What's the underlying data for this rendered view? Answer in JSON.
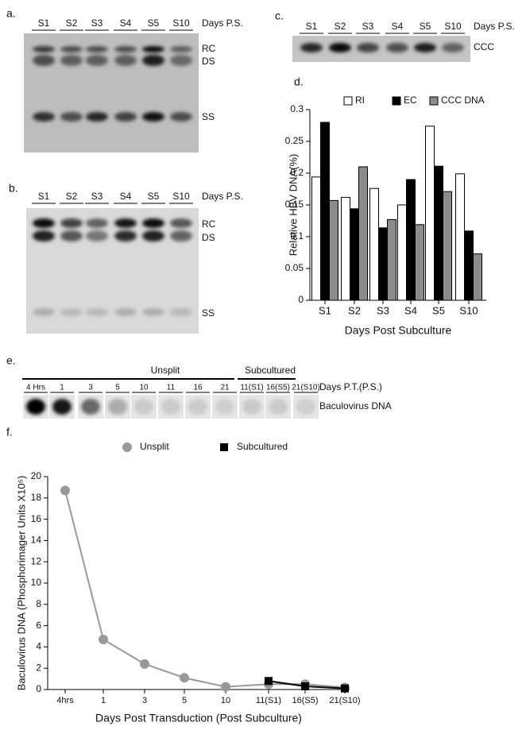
{
  "panels": {
    "a": {
      "label": "a.",
      "lanes": [
        "S1",
        "S2",
        "S3",
        "S4",
        "S5",
        "S10"
      ],
      "lane_axis": "Days P.S.",
      "bands": [
        "RC",
        "DS",
        "SS"
      ]
    },
    "b": {
      "label": "b.",
      "lanes": [
        "S1",
        "S2",
        "S3",
        "S4",
        "S5",
        "S10"
      ],
      "lane_axis": "Days P.S.",
      "bands": [
        "RC",
        "DS",
        "SS"
      ]
    },
    "c": {
      "label": "c.",
      "lanes": [
        "S1",
        "S2",
        "S3",
        "S4",
        "S5",
        "S10"
      ],
      "lane_axis": "Days P.S.",
      "bands": [
        "CCC"
      ]
    },
    "d": {
      "label": "d."
    },
    "e": {
      "label": "e.",
      "groups": [
        "Unsplit",
        "Subcultured"
      ],
      "lanes": [
        "4 Hrs",
        "1",
        "3",
        "5",
        "10",
        "11",
        "16",
        "21",
        "11(S1)",
        "16(S5)",
        "21(S10)"
      ],
      "lane_axis": "Days P.T.(P.S.)",
      "band": "Baculovirus DNA"
    },
    "f": {
      "label": "f."
    }
  },
  "chart_data": [
    {
      "type": "bar",
      "categories": [
        "S1",
        "S2",
        "S3",
        "S4",
        "S5",
        "S10"
      ],
      "series": [
        {
          "name": "RI",
          "color": "#ffffff",
          "values": [
            0.194,
            0.162,
            0.176,
            0.15,
            0.274,
            0.199
          ]
        },
        {
          "name": "EC",
          "color": "#000000",
          "values": [
            0.28,
            0.144,
            0.114,
            0.19,
            0.211,
            0.109
          ]
        },
        {
          "name": "CCC DNA",
          "color": "#8c8c8c",
          "values": [
            0.157,
            0.21,
            0.127,
            0.119,
            0.171,
            0.073
          ]
        }
      ],
      "ylim": [
        0,
        0.3
      ],
      "yticks": [
        0,
        0.05,
        0.1,
        0.15,
        0.2,
        0.25,
        0.3
      ],
      "y_label": "Relative HBV DNA(%)",
      "x_label": "Days Post Subculture"
    },
    {
      "type": "line",
      "categories": [
        "4hrs",
        "1",
        "3",
        "5",
        "10",
        "11(S1)",
        "16(S5)",
        "21(S10)"
      ],
      "series": [
        {
          "name": "Unsplit",
          "color": "#999999",
          "values": [
            18.7,
            4.7,
            2.4,
            1.1,
            0.25,
            0.5,
            0.5,
            0.2
          ]
        },
        {
          "name": "Subcultured",
          "color": "#000000",
          "values": [
            null,
            null,
            null,
            null,
            null,
            0.8,
            0.3,
            0.1
          ]
        }
      ],
      "ylim": [
        0,
        20
      ],
      "yticks": [
        0,
        2,
        4,
        6,
        8,
        10,
        12,
        14,
        16,
        18,
        20
      ],
      "y_label": "Baculovirus DNA (Phosphorimager Units X10⁵)",
      "x_label": "Days Post Transduction (Post Subculture)"
    }
  ]
}
